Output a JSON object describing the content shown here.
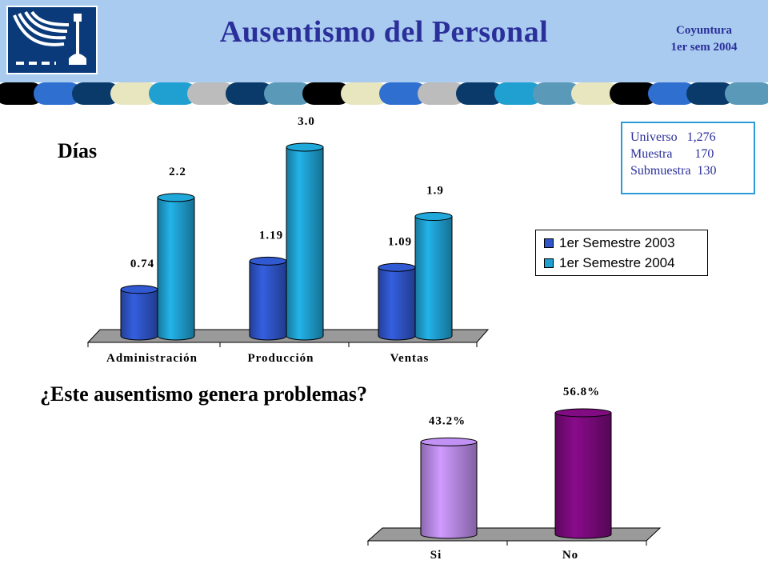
{
  "header": {
    "title": "Ausentismo del Personal",
    "coyuntura_line1": "Coyuntura",
    "coyuntura_line2": "1er sem 2004"
  },
  "colors": {
    "header_bg": "#a9cbf0",
    "title_color": "#2b2f9a",
    "series_2003": "#2f55c8",
    "series_2004": "#1fa0d0",
    "si": "#b98ae8",
    "no": "#7a0a7c"
  },
  "info": {
    "universo": "Universo   1,276",
    "muestra": "Muestra       170",
    "submuestra": "Submuestra  130"
  },
  "chart_data": [
    {
      "type": "bar",
      "title": "Días",
      "categories": [
        "Administración",
        "Producción",
        "Ventas"
      ],
      "series": [
        {
          "name": "1er Semestre 2003",
          "values": [
            0.74,
            1.19,
            1.09
          ],
          "labels": [
            "0.74",
            "1.19",
            "1.09"
          ]
        },
        {
          "name": "1er Semestre 2004",
          "values": [
            2.2,
            3.0,
            1.9
          ],
          "labels": [
            "2.2",
            "3.0",
            "1.9"
          ]
        }
      ],
      "legend_position": "right",
      "grid": false
    },
    {
      "type": "bar",
      "title": "¿Este ausentismo genera problemas?",
      "categories": [
        "Si",
        "No"
      ],
      "values": [
        43.2,
        56.8
      ],
      "labels": [
        "43.2%",
        "56.8%"
      ],
      "grid": false
    }
  ]
}
